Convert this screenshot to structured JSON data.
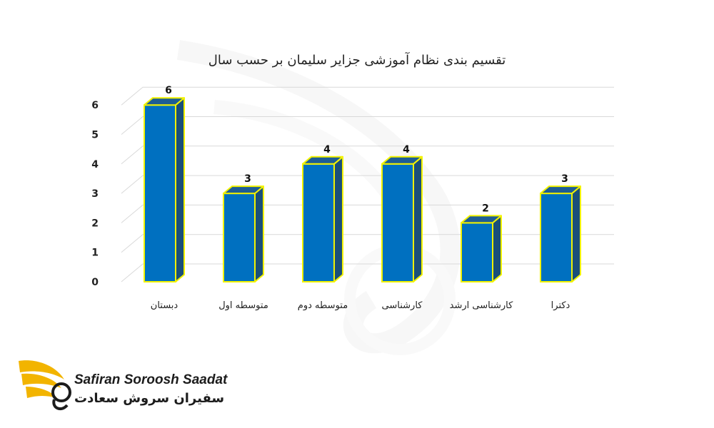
{
  "chart_data": {
    "type": "bar",
    "title": "تقسیم بندی نظام آموزشی جزایر سلیمان بر حسب سال",
    "categories": [
      "دبستان",
      "متوسطه اول",
      "متوسطه دوم",
      "کارشناسی",
      "کارشناسی ارشد",
      "دکترا"
    ],
    "values": [
      6,
      3,
      4,
      4,
      2,
      3
    ],
    "y_ticks": [
      "0",
      "1",
      "2",
      "3",
      "4",
      "5",
      "6"
    ],
    "ylim": [
      0,
      6
    ],
    "grid": true,
    "bar_fill": "#0070c0",
    "bar_side": "#1a4f7a",
    "bar_top": "#1d5d95",
    "bar_outline": "#f2f200"
  },
  "logo": {
    "name_en": "Safiran Soroosh Saadat",
    "name_fa": "سفیران سروش سعادت",
    "accent": "#f2b400"
  }
}
